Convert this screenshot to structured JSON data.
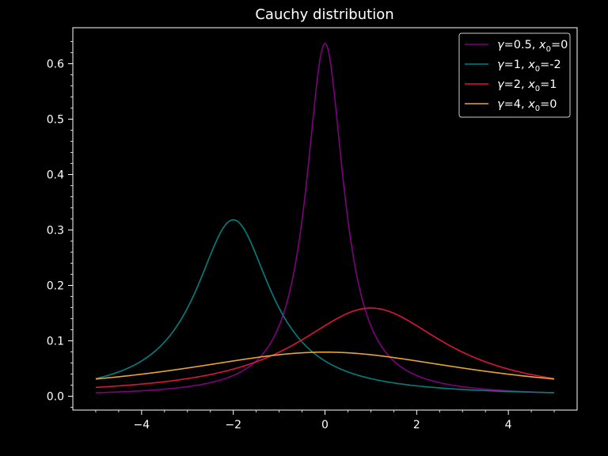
{
  "chart_data": {
    "type": "line",
    "title": "Cauchy distribution",
    "xlabel": "",
    "ylabel": "",
    "xlim": [
      -5.5,
      5.5
    ],
    "ylim": [
      -0.025,
      0.665
    ],
    "x_range": [
      -5,
      5
    ],
    "x_ticks": [
      -4,
      -2,
      0,
      2,
      4
    ],
    "x_tick_labels": [
      "−4",
      "−2",
      "0",
      "2",
      "4"
    ],
    "y_ticks": [
      0.0,
      0.1,
      0.2,
      0.3,
      0.4,
      0.5,
      0.6
    ],
    "y_tick_labels": [
      "0.0",
      "0.1",
      "0.2",
      "0.3",
      "0.4",
      "0.5",
      "0.6"
    ],
    "grid": false,
    "legend_position": "top-right",
    "background": "#000000",
    "series": [
      {
        "gamma": 0.5,
        "x0": 0,
        "color": "#800080",
        "legend": {
          "g": "0.5",
          "x0": "0"
        }
      },
      {
        "gamma": 1,
        "x0": -2,
        "color": "#008080",
        "legend": {
          "g": "1",
          "x0": "-2"
        }
      },
      {
        "gamma": 2,
        "x0": 1,
        "color": "#dc143c",
        "legend": {
          "g": "2",
          "x0": "1"
        }
      },
      {
        "gamma": 4,
        "x0": 0,
        "color": "#e8a530",
        "legend": {
          "g": "4",
          "x0": "0"
        }
      }
    ],
    "legend_symbols": {
      "gamma": "γ",
      "x": "x",
      "sub": "0",
      "eq": "=",
      "sep": ", "
    }
  }
}
